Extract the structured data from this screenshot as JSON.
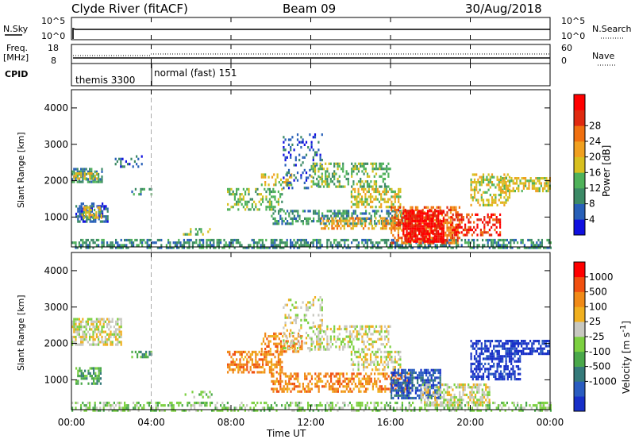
{
  "header": {
    "station": "Clyde River (fitACF)",
    "beam": "Beam 09",
    "date": "30/Aug/2018"
  },
  "panels": {
    "nsky": {
      "label": "N.Sky",
      "ticks": [
        "10^5",
        "10^0"
      ],
      "right_label": "N.Search",
      "right_ticks": [
        "10^5",
        "10^0"
      ]
    },
    "freq": {
      "label1": "Freq.",
      "label2": "[MHz]",
      "ticks": [
        "18",
        "8"
      ],
      "right_label": "Nave",
      "right_ticks": [
        "60",
        "0"
      ]
    },
    "cpid": {
      "label": "CPID",
      "modes": [
        "themis 3300",
        "normal (fast) 151"
      ],
      "mode_change_hour": 4.0
    }
  },
  "axes": {
    "xlabel": "Time UT",
    "xticks": [
      "00:00",
      "04:00",
      "08:00",
      "12:00",
      "16:00",
      "20:00",
      "00:00"
    ],
    "ylabel": "Slant Range [km]",
    "yticks": [
      "1000",
      "2000",
      "3000",
      "4000"
    ]
  },
  "colorbars": {
    "power": {
      "label": "Power [dB]",
      "ticks": [
        "4",
        "8",
        "12",
        "16",
        "20",
        "24",
        "28"
      ],
      "colors": [
        "#1010e0",
        "#2860b8",
        "#3c8a66",
        "#4fb25a",
        "#d8c020",
        "#f0a020",
        "#f07010",
        "#e02a10",
        "#ff0000"
      ]
    },
    "velocity": {
      "label": "Velocity [m s",
      "label_sup": "-1",
      "label_end": "]",
      "ticks": [
        "1000",
        "500",
        "100",
        "25",
        "-25",
        "-100",
        "-500",
        "-1000"
      ],
      "colors": [
        "#1830c8",
        "#2a5cc0",
        "#357a7a",
        "#4aa84a",
        "#7cd040",
        "#c8c8c0",
        "#f0b020",
        "#f08a18",
        "#f05010",
        "#ff0000"
      ]
    }
  },
  "chart_data": {
    "type": "heatmap",
    "x_range_hours": [
      0,
      24
    ],
    "y_range_km": [
      180,
      4500
    ],
    "power_regions": [
      {
        "t0": 0.0,
        "t1": 24.0,
        "r0": 180,
        "r1": 400,
        "level": 2,
        "density": 0.55
      },
      {
        "t0": 0.0,
        "t1": 1.5,
        "r0": 2000,
        "r1": 2350,
        "level": 2,
        "density": 0.7
      },
      {
        "t0": 0.1,
        "t1": 1.3,
        "r0": 2080,
        "r1": 2230,
        "level": 4,
        "density": 0.6
      },
      {
        "t0": 0.2,
        "t1": 1.8,
        "r0": 900,
        "r1": 1400,
        "level": 1,
        "density": 0.6
      },
      {
        "t0": 0.5,
        "t1": 1.5,
        "r0": 1000,
        "r1": 1300,
        "level": 4,
        "density": 0.6
      },
      {
        "t0": 2.0,
        "t1": 3.5,
        "r0": 2400,
        "r1": 2700,
        "level": 1,
        "density": 0.25
      },
      {
        "t0": 3.0,
        "t1": 4.0,
        "r0": 1600,
        "r1": 1800,
        "level": 2,
        "density": 0.4
      },
      {
        "t0": 5.5,
        "t1": 7.0,
        "r0": 500,
        "r1": 700,
        "level": 3,
        "density": 0.3
      },
      {
        "t0": 7.8,
        "t1": 10.6,
        "r0": 1200,
        "r1": 1800,
        "level": 3,
        "density": 0.45
      },
      {
        "t0": 9.5,
        "t1": 11.0,
        "r0": 1900,
        "r1": 2200,
        "level": 4,
        "density": 0.4
      },
      {
        "t0": 10.6,
        "t1": 12.6,
        "r0": 1800,
        "r1": 3300,
        "level": 1,
        "density": 0.2
      },
      {
        "t0": 12.0,
        "t1": 16.0,
        "r0": 1850,
        "r1": 2500,
        "level": 3,
        "density": 0.4
      },
      {
        "t0": 14.0,
        "t1": 16.5,
        "r0": 1300,
        "r1": 1800,
        "level": 4,
        "density": 0.55
      },
      {
        "t0": 10.0,
        "t1": 17.0,
        "r0": 800,
        "r1": 1200,
        "level": 2,
        "density": 0.5
      },
      {
        "t0": 12.5,
        "t1": 16.5,
        "r0": 700,
        "r1": 1000,
        "level": 5,
        "density": 0.45
      },
      {
        "t0": 16.0,
        "t1": 19.5,
        "r0": 300,
        "r1": 1300,
        "level": 6,
        "density": 0.55
      },
      {
        "t0": 16.6,
        "t1": 18.7,
        "r0": 300,
        "r1": 1200,
        "level": 8,
        "density": 0.75
      },
      {
        "t0": 19.0,
        "t1": 21.5,
        "r0": 500,
        "r1": 1100,
        "level": 7,
        "density": 0.5
      },
      {
        "t0": 20.0,
        "t1": 22.0,
        "r0": 1300,
        "r1": 2200,
        "level": 4,
        "density": 0.5
      },
      {
        "t0": 21.5,
        "t1": 24.0,
        "r0": 1700,
        "r1": 2100,
        "level": 4,
        "density": 0.6
      }
    ],
    "velocity_regions": [
      {
        "t0": 0.0,
        "t1": 24.0,
        "r0": 180,
        "r1": 400,
        "level": 4,
        "density": 0.45
      },
      {
        "t0": 0.0,
        "t1": 2.5,
        "r0": 2000,
        "r1": 2700,
        "level": 5,
        "density": 0.6
      },
      {
        "t0": 0.2,
        "t1": 1.5,
        "r0": 900,
        "r1": 1350,
        "level": 3,
        "density": 0.6
      },
      {
        "t0": 3.0,
        "t1": 4.0,
        "r0": 1600,
        "r1": 1800,
        "level": 3,
        "density": 0.4
      },
      {
        "t0": 5.5,
        "t1": 7.0,
        "r0": 500,
        "r1": 700,
        "level": 4,
        "density": 0.3
      },
      {
        "t0": 7.8,
        "t1": 10.6,
        "r0": 1200,
        "r1": 1800,
        "level": 7,
        "density": 0.55
      },
      {
        "t0": 9.5,
        "t1": 11.6,
        "r0": 1800,
        "r1": 2300,
        "level": 7,
        "density": 0.5
      },
      {
        "t0": 10.6,
        "t1": 12.6,
        "r0": 1800,
        "r1": 3300,
        "level": 5,
        "density": 0.25
      },
      {
        "t0": 12.0,
        "t1": 16.0,
        "r0": 1850,
        "r1": 2500,
        "level": 5,
        "density": 0.45
      },
      {
        "t0": 14.0,
        "t1": 16.5,
        "r0": 1300,
        "r1": 1800,
        "level": 5,
        "density": 0.5
      },
      {
        "t0": 10.0,
        "t1": 17.0,
        "r0": 700,
        "r1": 1200,
        "level": 7,
        "density": 0.5
      },
      {
        "t0": 16.0,
        "t1": 18.5,
        "r0": 500,
        "r1": 1300,
        "level": 1,
        "density": 0.65
      },
      {
        "t0": 17.5,
        "t1": 21.0,
        "r0": 300,
        "r1": 900,
        "level": 5,
        "density": 0.55
      },
      {
        "t0": 20.0,
        "t1": 22.5,
        "r0": 1000,
        "r1": 2100,
        "level": 0,
        "density": 0.6
      },
      {
        "t0": 22.0,
        "t1": 24.0,
        "r0": 1700,
        "r1": 2100,
        "level": 0,
        "density": 0.65
      }
    ]
  }
}
